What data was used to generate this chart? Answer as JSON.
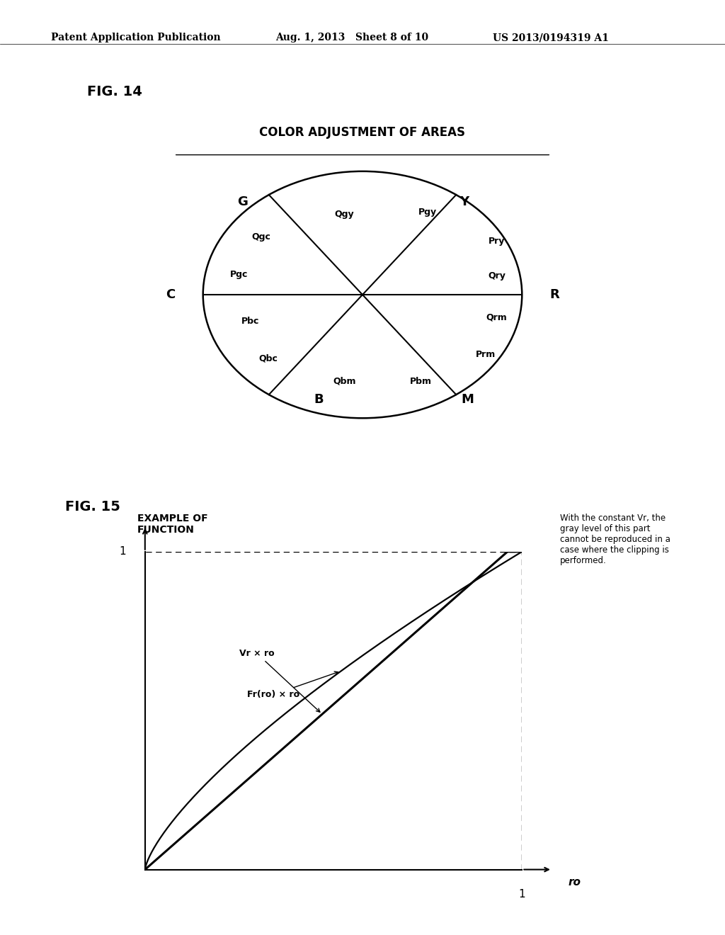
{
  "background_color": "#ffffff",
  "header_left": "Patent Application Publication",
  "header_mid": "Aug. 1, 2013   Sheet 8 of 10",
  "header_right": "US 2013/0194319 A1",
  "fig14_label": "FIG. 14",
  "fig14_title": "COLOR ADJUSTMENT OF AREAS",
  "fig15_label": "FIG. 15",
  "fig15_title": "EXAMPLE OF\nFUNCTION",
  "annotation_text": "With the constant Vr, the\ngray level of this part\ncannot be reproduced in a\ncase where the clipping is\nperformed.",
  "vr_label": "Vr × ro",
  "fr_label": "Fr(ro) × ro",
  "axis_label_x": "ro",
  "axis_tick_x": "1",
  "axis_tick_y": "1"
}
